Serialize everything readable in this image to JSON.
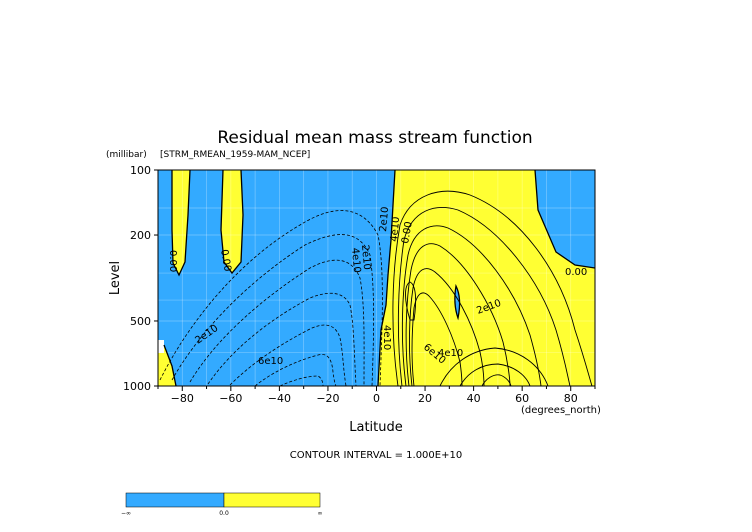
{
  "chart_data": {
    "type": "contour",
    "title": "Residual mean mass stream function",
    "subtitle": "[STRM_RMEAN_1959-MAM_NCEP]",
    "ylabel": "Level",
    "yunits": "(millibar)",
    "xlabel": "Latitude",
    "xunits": "(degrees_north)",
    "xlim": [
      -90,
      90
    ],
    "ylim": [
      1000,
      100
    ],
    "yscale": "log",
    "x_ticks": [
      "−80",
      "−60",
      "−40",
      "−20",
      "0",
      "20",
      "40",
      "60",
      "80"
    ],
    "x_tick_values": [
      -80,
      -60,
      -40,
      -20,
      0,
      20,
      40,
      60,
      80
    ],
    "y_ticks": [
      "100",
      "200",
      "500",
      "1000"
    ],
    "y_tick_values": [
      100,
      200,
      500,
      1000
    ],
    "grid": true,
    "contour_interval_text": "CONTOUR INTERVAL = 1.000E+10",
    "contour_labels": [
      "0.00",
      "0.00",
      "0.00",
      "2e10",
      "4e10",
      "2e10",
      "6e10",
      "2e10",
      "4e10",
      "2e10",
      "4e10",
      "6e10",
      "4e10",
      "0.00"
    ],
    "colorbar": {
      "labels": [
        "−∞",
        "0.0",
        "∞"
      ],
      "colors": [
        "#33aaff",
        "#ffff33"
      ]
    }
  }
}
